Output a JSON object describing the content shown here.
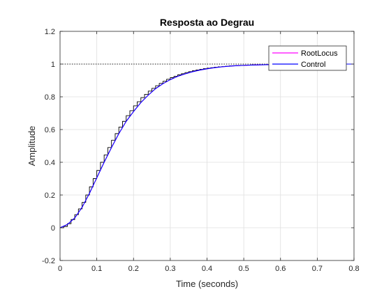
{
  "chart_data": {
    "type": "line",
    "title": "Resposta ao Degrau",
    "xlabel": "Time (seconds)",
    "ylabel": "Amplitude",
    "xlim": [
      0,
      0.8
    ],
    "ylim": [
      -0.2,
      1.2
    ],
    "x_ticks": [
      0,
      0.1,
      0.2,
      0.3,
      0.4,
      0.5,
      0.6,
      0.7,
      0.8
    ],
    "x_tick_labels": [
      "0",
      "0.1",
      "0.2",
      "0.3",
      "0.4",
      "0.5",
      "0.6",
      "0.7",
      "0.8"
    ],
    "y_ticks": [
      -0.2,
      0,
      0.2,
      0.4,
      0.6,
      0.8,
      1,
      1.2
    ],
    "y_tick_labels": [
      "-0.2",
      "0",
      "0.2",
      "0.4",
      "0.6",
      "0.8",
      "1",
      "1.2"
    ],
    "grid": true,
    "legend_position": "top-right",
    "reference_line": {
      "y": 1,
      "style": "dotted",
      "color": "#000000"
    },
    "series": [
      {
        "name": "RootLocus",
        "color": "#ff00ff",
        "style": "line",
        "x": [
          0,
          0.02,
          0.04,
          0.06,
          0.08,
          0.1,
          0.12,
          0.14,
          0.16,
          0.18,
          0.2,
          0.22,
          0.24,
          0.26,
          0.28,
          0.3,
          0.32,
          0.34,
          0.36,
          0.38,
          0.4,
          0.42,
          0.44,
          0.46,
          0.48,
          0.5,
          0.52,
          0.54,
          0.56,
          0.58,
          0.6,
          0.62,
          0.64,
          0.66,
          0.68,
          0.7,
          0.72,
          0.74,
          0.76,
          0.78,
          0.8
        ],
        "y": [
          0,
          0.02,
          0.06,
          0.125,
          0.21,
          0.305,
          0.4,
          0.49,
          0.575,
          0.65,
          0.71,
          0.765,
          0.81,
          0.85,
          0.88,
          0.905,
          0.925,
          0.94,
          0.953,
          0.963,
          0.971,
          0.978,
          0.983,
          0.987,
          0.99,
          0.992,
          0.994,
          0.995,
          0.996,
          0.997,
          0.998,
          0.998,
          0.999,
          0.999,
          0.999,
          1.0,
          1.0,
          1.0,
          1.0,
          1.0,
          1.0
        ]
      },
      {
        "name": "Control",
        "color": "#0000ff",
        "style": "line",
        "x": [
          0,
          0.02,
          0.04,
          0.06,
          0.08,
          0.1,
          0.12,
          0.14,
          0.16,
          0.18,
          0.2,
          0.22,
          0.24,
          0.26,
          0.28,
          0.3,
          0.32,
          0.34,
          0.36,
          0.38,
          0.4,
          0.42,
          0.44,
          0.46,
          0.48,
          0.5,
          0.52,
          0.54,
          0.56,
          0.58,
          0.6,
          0.62,
          0.64,
          0.66,
          0.68,
          0.7,
          0.72,
          0.74,
          0.76,
          0.78,
          0.8
        ],
        "y": [
          0,
          0.02,
          0.06,
          0.125,
          0.21,
          0.305,
          0.4,
          0.49,
          0.575,
          0.65,
          0.71,
          0.765,
          0.81,
          0.85,
          0.88,
          0.905,
          0.925,
          0.94,
          0.953,
          0.963,
          0.971,
          0.978,
          0.983,
          0.987,
          0.99,
          0.992,
          0.994,
          0.995,
          0.996,
          0.997,
          0.998,
          0.998,
          0.999,
          0.999,
          0.999,
          1.0,
          1.0,
          1.0,
          1.0,
          1.0,
          1.0
        ]
      },
      {
        "name": "",
        "color": "#000000",
        "style": "stairs",
        "x": [
          0,
          0.01,
          0.02,
          0.03,
          0.04,
          0.05,
          0.06,
          0.07,
          0.08,
          0.09,
          0.1,
          0.11,
          0.12,
          0.13,
          0.14,
          0.15,
          0.16,
          0.17,
          0.18,
          0.19,
          0.2,
          0.21,
          0.22,
          0.23,
          0.24,
          0.25,
          0.26,
          0.27,
          0.28,
          0.29,
          0.3,
          0.31,
          0.32,
          0.33,
          0.34,
          0.35,
          0.36,
          0.37,
          0.38,
          0.39,
          0.4,
          0.41,
          0.42,
          0.43,
          0.44,
          0.45,
          0.46,
          0.47,
          0.48,
          0.49,
          0.5,
          0.51,
          0.52,
          0.53,
          0.54,
          0.55,
          0.56,
          0.57,
          0.58,
          0.59,
          0.6,
          0.61,
          0.62,
          0.63,
          0.64,
          0.65,
          0.66,
          0.67,
          0.68,
          0.69,
          0.7,
          0.71,
          0.72,
          0.73,
          0.74,
          0.75,
          0.76,
          0.77,
          0.78,
          0.79,
          0.8
        ],
        "y": [
          0,
          0.008,
          0.025,
          0.05,
          0.08,
          0.115,
          0.155,
          0.2,
          0.25,
          0.3,
          0.35,
          0.4,
          0.445,
          0.49,
          0.535,
          0.575,
          0.615,
          0.65,
          0.685,
          0.715,
          0.745,
          0.77,
          0.795,
          0.815,
          0.835,
          0.852,
          0.868,
          0.882,
          0.895,
          0.907,
          0.917,
          0.926,
          0.934,
          0.941,
          0.948,
          0.954,
          0.959,
          0.964,
          0.968,
          0.972,
          0.975,
          0.978,
          0.981,
          0.983,
          0.985,
          0.987,
          0.989,
          0.99,
          0.991,
          0.992,
          0.993,
          0.994,
          0.995,
          0.995,
          0.996,
          0.996,
          0.997,
          0.997,
          0.998,
          0.998,
          0.998,
          0.998,
          0.999,
          0.999,
          0.999,
          0.999,
          0.999,
          0.999,
          1.0,
          1.0,
          1.0,
          1.0,
          1.0,
          1.0,
          1.0,
          1.0,
          1.0,
          1.0,
          1.0,
          1.0,
          1.0
        ]
      }
    ]
  }
}
